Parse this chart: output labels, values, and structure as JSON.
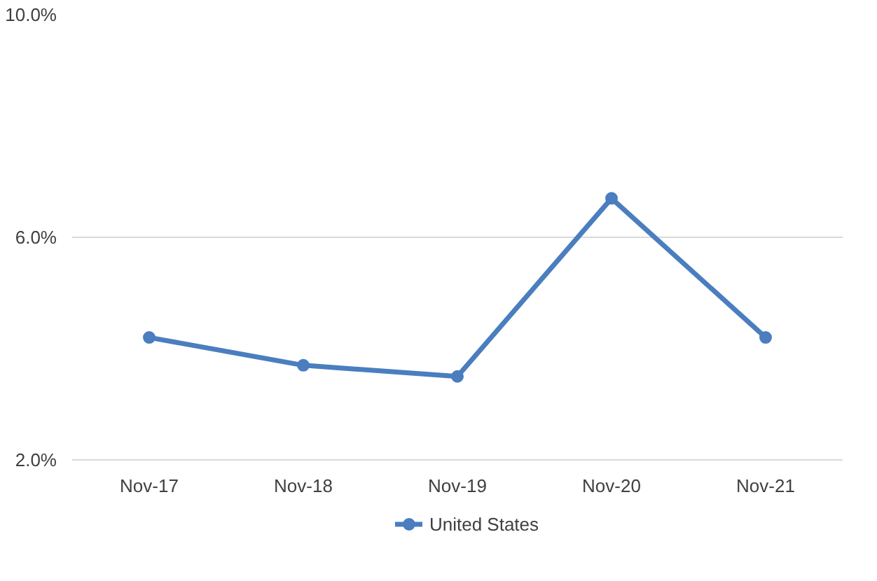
{
  "chart_data": {
    "type": "line",
    "categories": [
      "Nov-17",
      "Nov-18",
      "Nov-19",
      "Nov-20",
      "Nov-21"
    ],
    "series": [
      {
        "name": "United States",
        "color": "#4a7ebf",
        "values": [
          4.2,
          3.7,
          3.5,
          6.7,
          4.2
        ]
      }
    ],
    "ylim": [
      2,
      10
    ],
    "yticks": [
      {
        "value": 2,
        "label": "2.0%"
      },
      {
        "value": 6,
        "label": "6.0%"
      },
      {
        "value": 10,
        "label": "10.0%"
      }
    ],
    "grid": "y",
    "legend": "bottom",
    "marker": "circle",
    "line_style": "solid"
  }
}
